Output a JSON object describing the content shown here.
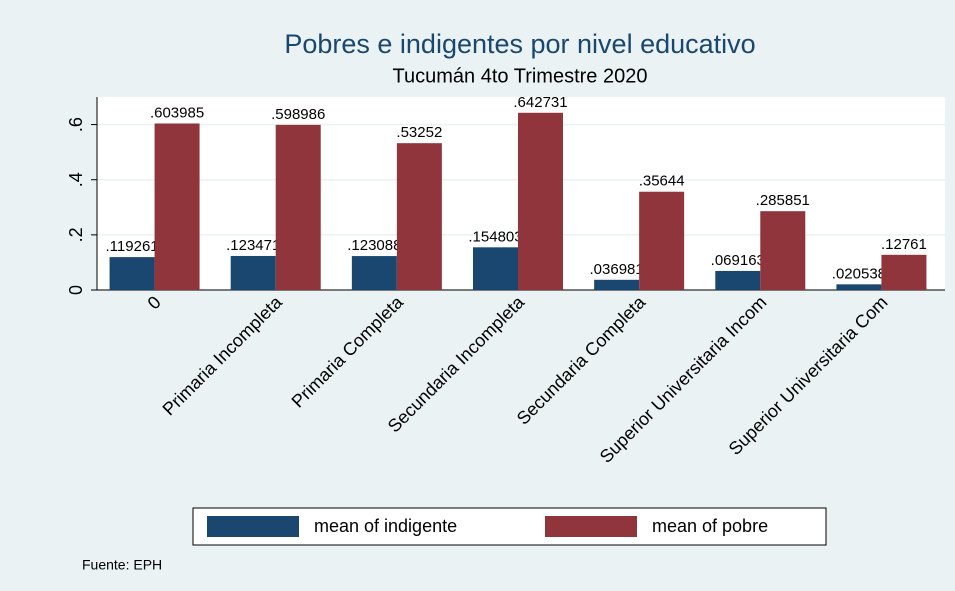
{
  "chart_data": {
    "type": "bar",
    "title": "Pobres e indigentes por nivel educativo",
    "subtitle": "Tucumán 4to Trimestre 2020",
    "note": "Fuente: EPH",
    "categories": [
      "0",
      "Primaria Incompleta",
      "Primaria Completa",
      "Secundaria Incompleta",
      "Secundaria Completa",
      "Superior Universitaria Incom",
      "Superior Universitaria Com"
    ],
    "series": [
      {
        "name": "mean of indigente",
        "color": "#1a476f",
        "values": [
          0.119261,
          0.123471,
          0.123088,
          0.154803,
          0.036981,
          0.069163,
          0.020538
        ],
        "value_labels": [
          ".119261",
          ".123471",
          ".123088",
          ".154803",
          ".036981",
          ".069163",
          ".020538"
        ]
      },
      {
        "name": "mean of pobre",
        "color": "#90353b",
        "values": [
          0.603985,
          0.598986,
          0.53252,
          0.642731,
          0.35644,
          0.285851,
          0.12761
        ],
        "value_labels": [
          ".603985",
          ".598986",
          ".53252",
          ".642731",
          ".35644",
          ".285851",
          ".12761"
        ]
      }
    ],
    "ylim": [
      0,
      0.7
    ],
    "yticks": [
      0,
      {
        "value": 0.2,
        "label": ".2"
      },
      {
        "value": 0.4,
        "label": ".4"
      },
      {
        "value": 0.6,
        "label": ".6"
      }
    ],
    "grid": true
  }
}
